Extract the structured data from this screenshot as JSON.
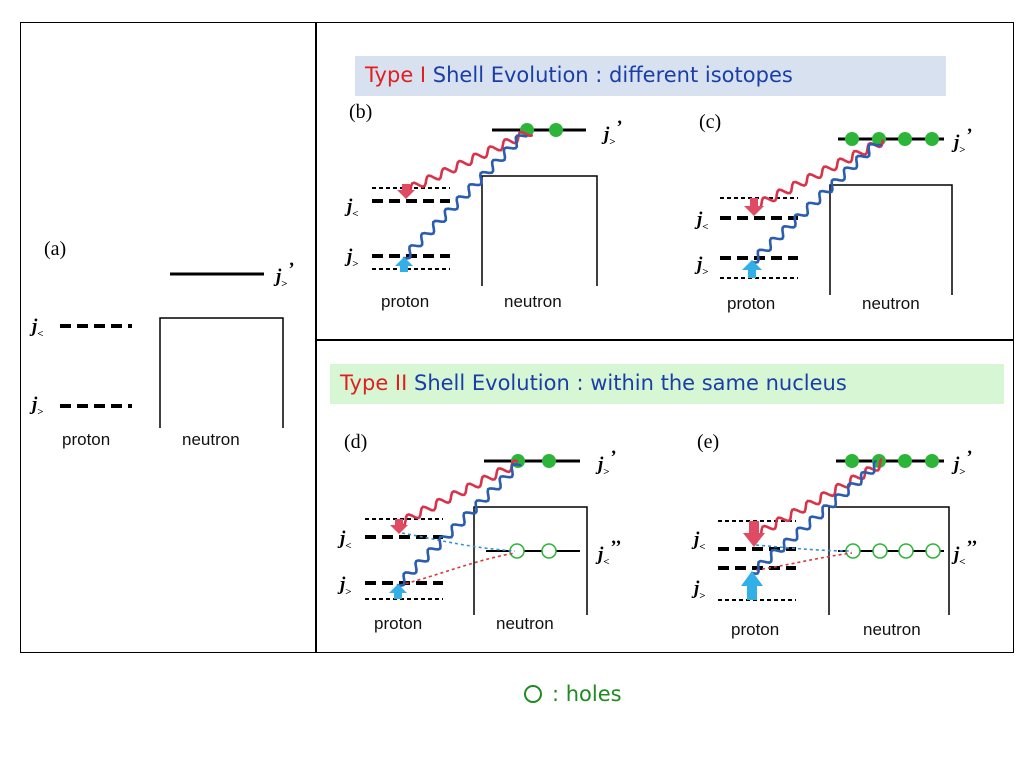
{
  "banners": {
    "type1": {
      "type_label": "Type I",
      "rest": "Shell Evolution : different isotopes"
    },
    "type2": {
      "type_label": "Type II",
      "rest": "Shell Evolution : within the same nucleus"
    }
  },
  "panels": {
    "a": "(a)",
    "b": "(b)",
    "c": "(c)",
    "d": "(d)",
    "e": "(e)"
  },
  "orbitals": {
    "j_prefix": "j",
    "less": "<",
    "greater": ">",
    "prime": "’",
    "double_prime": "’’"
  },
  "captions": {
    "proton": "proton",
    "neutron": "neutron"
  },
  "legend": {
    "text": ": holes"
  },
  "colors": {
    "attract_wave": "#d8334a",
    "repulse_wave": "#2a5db0",
    "particle": "#2db53a",
    "hole": "#2db53a",
    "arrow_down": "#e04a63",
    "arrow_up": "#33aee6",
    "dotted_red": "#d83a3a",
    "dotted_blue": "#3a8fd0"
  }
}
